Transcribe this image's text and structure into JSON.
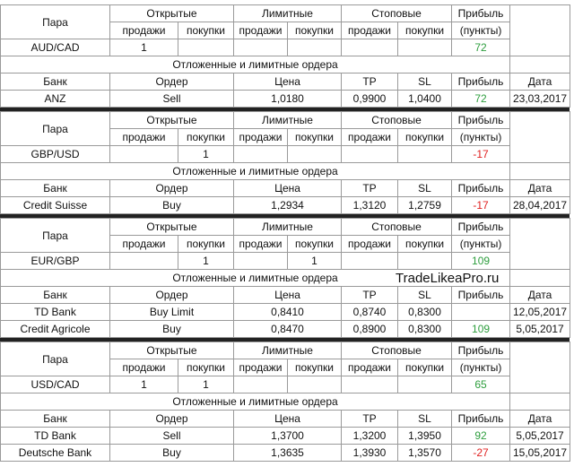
{
  "blocks": [
    {
      "header": [
        "Пара",
        "Открытые",
        "Лимитные",
        "Стоповые",
        "Прибыль"
      ],
      "sides": [
        "продажи",
        "покупки",
        "продажи",
        "покупки",
        "продажи",
        "покупки"
      ],
      "points": "(пункты)",
      "pair": {
        "name": "AUD/CAD",
        "cells": [
          "1",
          null,
          null,
          null,
          null,
          null
        ],
        "profit": "72"
      },
      "orders_title": "Отложенные и лимитные ордера",
      "orders_header": [
        "Банк",
        "Ордер",
        "Цена",
        "TP",
        "SL",
        "Прибыль",
        "Дата"
      ],
      "orders": [
        [
          "ANZ",
          "Sell",
          "1,0180",
          "0,9900",
          "1,0400",
          "72",
          "23,03,2017"
        ]
      ]
    },
    {
      "header": [
        "Пара",
        "Открытые",
        "Лимитные",
        "Стоповые",
        "Прибыль"
      ],
      "sides": [
        "продажи",
        "покупки",
        "продажи",
        "покупки",
        "продажи",
        "покупки"
      ],
      "points": "(пункты)",
      "pair": {
        "name": "GBP/USD",
        "cells": [
          null,
          "1",
          null,
          null,
          null,
          null
        ],
        "profit": "-17"
      },
      "orders_title": "Отложенные и лимитные ордера",
      "orders_header": [
        "Банк",
        "Ордер",
        "Цена",
        "TP",
        "SL",
        "Прибыль",
        "Дата"
      ],
      "orders": [
        [
          "Credit Suisse",
          "Buy",
          "1,2934",
          "1,3120",
          "1,2759",
          "-17",
          "28,04,2017"
        ]
      ]
    },
    {
      "header": [
        "Пара",
        "Открытые",
        "Лимитные",
        "Стоповые",
        "Прибыль"
      ],
      "sides": [
        "продажи",
        "покупки",
        "продажи",
        "покупки",
        "продажи",
        "покупки"
      ],
      "points": "(пункты)",
      "pair": {
        "name": "EUR/GBP",
        "cells": [
          null,
          "1",
          null,
          "1",
          null,
          null
        ],
        "profit": "109"
      },
      "orders_title": "Отложенные и лимитные ордера",
      "orders_header": [
        "Банк",
        "Ордер",
        "Цена",
        "TP",
        "SL",
        "Прибыль",
        "Дата"
      ],
      "orders": [
        [
          "TD Bank",
          "Buy Limit",
          "0,8410",
          "0,8740",
          "0,8300",
          null,
          "12,05,2017"
        ],
        [
          "Credit Agricole",
          "Buy",
          "0,8470",
          "0,8900",
          "0,8300",
          "109",
          "5,05,2017"
        ]
      ]
    },
    {
      "header": [
        "Пара",
        "Открытые",
        "Лимитные",
        "Стоповые",
        "Прибыль"
      ],
      "sides": [
        "продажи",
        "покупки",
        "продажи",
        "покупки",
        "продажи",
        "покупки"
      ],
      "points": "(пункты)",
      "pair": {
        "name": "USD/CAD",
        "cells": [
          "1",
          "1",
          null,
          null,
          null,
          null
        ],
        "profit": "65"
      },
      "orders_title": "Отложенные и лимитные ордера",
      "orders_header": [
        "Банк",
        "Ордер",
        "Цена",
        "TP",
        "SL",
        "Прибыль",
        "Дата"
      ],
      "orders": [
        [
          "TD Bank",
          "Sell",
          "1,3700",
          "1,3200",
          "1,3950",
          "92",
          "5,05,2017"
        ],
        [
          "Deutsche Bank",
          "Buy",
          "1,3635",
          "1,3930",
          "1,3570",
          "-27",
          "15,05,2017"
        ]
      ]
    }
  ],
  "watermark": "TradeLikeaPro.ru"
}
